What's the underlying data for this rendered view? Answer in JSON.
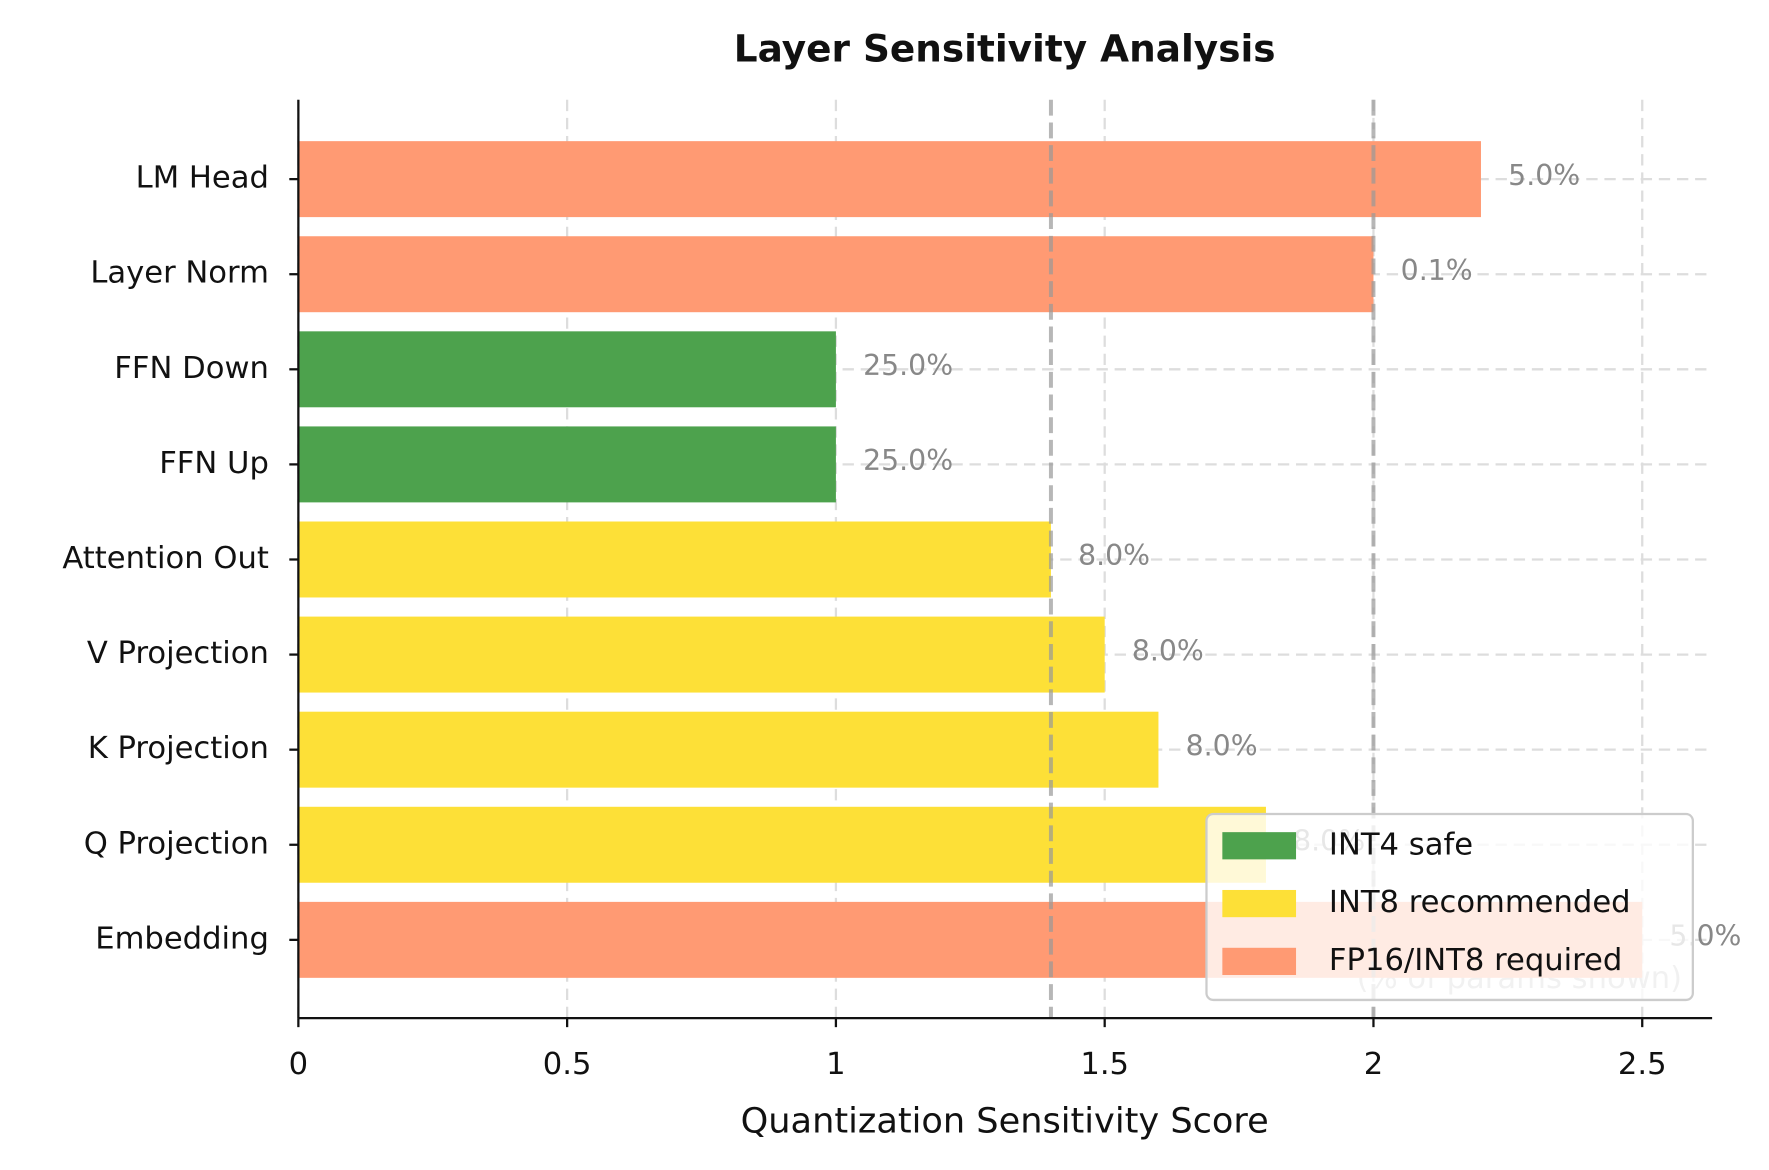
{
  "chart_data": {
    "type": "bar",
    "orientation": "horizontal",
    "title": "Layer Sensitivity Analysis",
    "x_label": "Quantization Sensitivity Score",
    "categories": [
      "LM Head",
      "Layer Norm",
      "FFN Down",
      "FFN Up",
      "Attention Out",
      "V Projection",
      "K Projection",
      "Q Projection",
      "Embedding"
    ],
    "values": [
      2.2,
      2.0,
      1.0,
      1.0,
      1.4,
      1.5,
      1.6,
      1.8,
      2.5
    ],
    "bar_labels": [
      "5.0%",
      "0.1%",
      "25.0%",
      "25.0%",
      "8.0%",
      "8.0%",
      "8.0%",
      "8.0%",
      "5.0%"
    ],
    "bar_colors": [
      "#ff9a73",
      "#ff9a73",
      "#4da24d",
      "#4da24d",
      "#fde037",
      "#fde037",
      "#fde037",
      "#fde037",
      "#ff9a73"
    ],
    "thresholds": [
      1.4,
      2.0
    ],
    "annotation": "(% of params shown)",
    "legend": [
      {
        "name": "INT4 safe",
        "color": "#4da24d"
      },
      {
        "name": "INT8 recommended",
        "color": "#fde037"
      },
      {
        "name": "FP16/INT8 required",
        "color": "#ff9a73"
      }
    ],
    "legend_position": "lower right",
    "xlim": [
      0,
      2.63
    ],
    "xticks": [
      0.0,
      0.5,
      1.0,
      1.5,
      2.0,
      2.5
    ],
    "grid": true
  }
}
